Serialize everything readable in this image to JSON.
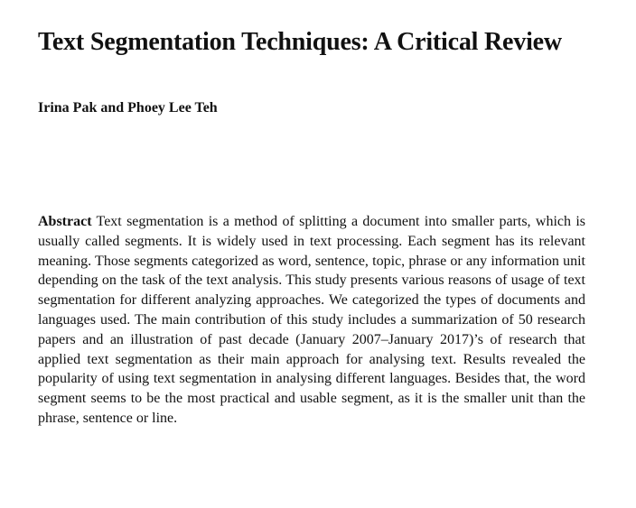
{
  "paper": {
    "title": "Text Segmentation Techniques: A Critical Review",
    "authors": "Irina Pak and Phoey Lee Teh",
    "abstract_label": "Abstract",
    "abstract_text": "Text segmentation is a method of splitting a document into smaller parts, which is usually called segments. It is widely used in text processing. Each segment has its relevant meaning. Those segments categorized as word, sentence, topic, phrase or any information unit depending on the task of the text analysis. This study presents various reasons of usage of text segmentation for different analyzing approaches. We categorized the types of documents and languages used. The main contribution of this study includes a summarization of 50 research papers and an illustration of past decade (January 2007–January 2017)’s of research that applied text segmentation as their main approach for analysing text. Results revealed the popularity of using text segmentation in analysing different languages. Besides that, the word segment seems to be the most practical and usable segment, as it is the smaller unit than the phrase, sentence or line."
  }
}
